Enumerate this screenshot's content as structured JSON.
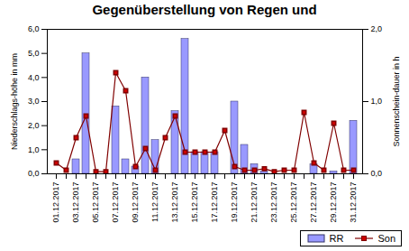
{
  "chart_data": {
    "type": "bar",
    "title": "Gegenüberstellung von Regen und",
    "ylabel": "Niederschlags-höhe in mm",
    "y2label": "Sonnenschein-dauer in h",
    "categories": [
      "01.12.2017",
      null,
      "03.12.2017",
      null,
      "05.12.2017",
      null,
      "07.12.2017",
      null,
      "09.12.2017",
      null,
      "11.12.2017",
      null,
      "13.12.2017",
      null,
      "15.12.2017",
      null,
      "17.12.2017",
      null,
      "19.12.2017",
      null,
      "21.12.2017",
      null,
      "23.12.2017",
      null,
      "25.12.2017",
      null,
      "27.12.2017",
      null,
      "29.12.2017",
      null,
      "31.12.2017"
    ],
    "series": [
      {
        "name": "RR",
        "type": "bar",
        "color": "#9999ff",
        "values": [
          0,
          0,
          0.6,
          5.0,
          0,
          0,
          2.8,
          0.6,
          0.3,
          4.0,
          1.4,
          0,
          2.6,
          5.6,
          0.9,
          0.9,
          0.9,
          0,
          3.0,
          1.2,
          0.4,
          0.1,
          0,
          0,
          0,
          0,
          0.4,
          0,
          0.1,
          0,
          2.2
        ]
      },
      {
        "name": "Son",
        "type": "line",
        "axis": "y2",
        "color": "#800000",
        "marker": "square",
        "values": [
          0.15,
          0.05,
          0.5,
          0.8,
          0.03,
          0.03,
          1.4,
          1.15,
          0.1,
          0.35,
          0.05,
          0.5,
          0.8,
          0.3,
          0.3,
          0.3,
          0.3,
          0.6,
          0.1,
          0.05,
          0.05,
          0.07,
          0.03,
          0.05,
          0.05,
          0.85,
          0.15,
          0.05,
          0.7,
          0.05,
          0.05
        ]
      }
    ],
    "ylim": [
      0,
      6
    ],
    "yticks": [
      {
        "value": 0,
        "label": "0,0"
      },
      {
        "value": 1,
        "label": "1,0"
      },
      {
        "value": 2,
        "label": "2,0"
      },
      {
        "value": 3,
        "label": "3,0"
      },
      {
        "value": 4,
        "label": "4,0"
      },
      {
        "value": 5,
        "label": "5,0"
      },
      {
        "value": 6,
        "label": "6,0"
      }
    ],
    "y2lim": [
      0,
      2
    ],
    "y2ticks": [
      {
        "value": 0,
        "label": "0,0"
      },
      {
        "value": 1,
        "label": "1,0"
      },
      {
        "value": 2,
        "label": "2,0"
      }
    ],
    "grid": false,
    "legend": "bottom"
  }
}
